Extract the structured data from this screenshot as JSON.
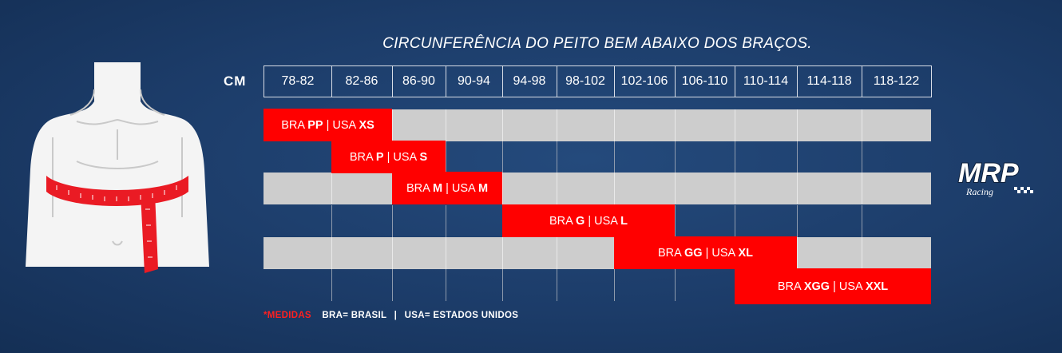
{
  "title": "CIRCUNFERÊNCIA DO PEITO BEM ABAIXO DOS BRAÇOS.",
  "unit_label": "CM",
  "ranges": [
    "78-82",
    "82-86",
    "86-90",
    "90-94",
    "94-98",
    "98-102",
    "102-106",
    "106-110",
    "110-114",
    "114-118",
    "118-122"
  ],
  "sizes": [
    {
      "bra_prefix": "BRA ",
      "bra": "PP",
      "mid": " | USA ",
      "usa": "XS",
      "start": 0,
      "span": 2
    },
    {
      "bra_prefix": "BRA ",
      "bra": "P",
      "mid": " | USA ",
      "usa": "S",
      "start": 1,
      "span": 2
    },
    {
      "bra_prefix": "BRA ",
      "bra": "M",
      "mid": " | USA ",
      "usa": "M",
      "start": 2,
      "span": 2
    },
    {
      "bra_prefix": "BRA ",
      "bra": "G",
      "mid": " | USA ",
      "usa": "L",
      "start": 4,
      "span": 3
    },
    {
      "bra_prefix": "BRA ",
      "bra": "GG",
      "mid": " | USA ",
      "usa": "XL",
      "start": 6,
      "span": 3
    },
    {
      "bra_prefix": "BRA ",
      "bra": "XGG",
      "mid": " | USA ",
      "usa": "XXL",
      "start": 8,
      "span": 3
    }
  ],
  "footnote": {
    "label": "*MEDIDAS",
    "bra_def": "BRA= BRASIL",
    "divider": "|",
    "usa_def": "USA= ESTADOS UNIDOS"
  },
  "logo": {
    "text": "MRP",
    "subtext": "Racing"
  },
  "colors": {
    "background": "#1c3c69",
    "accent": "#ff0000",
    "row_gray": "#cdcdcd"
  }
}
